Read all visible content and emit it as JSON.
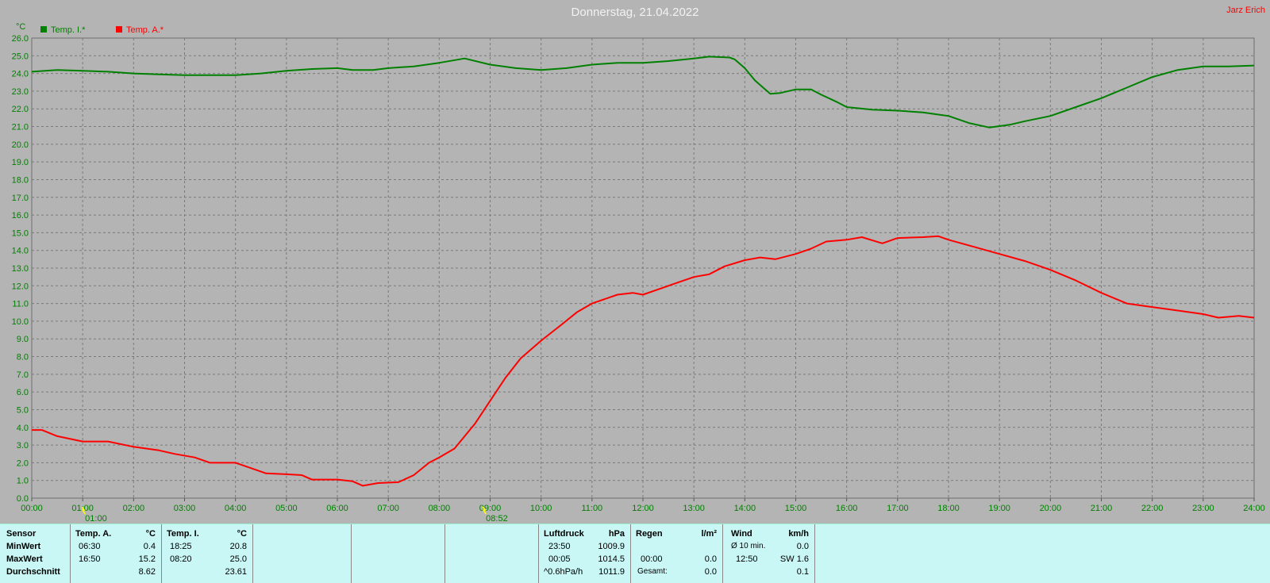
{
  "title": "Donnerstag, 21.04.2022",
  "author": "Jarz Erich",
  "colors": {
    "background": "#b4b4b4",
    "inside": "#008000",
    "outside": "#ff0000",
    "stats_bg": "#c8f7f6",
    "author": "#ff0000"
  },
  "chart_data": {
    "type": "line",
    "ylabel": "°C",
    "ylim": [
      0,
      26
    ],
    "yticks": [
      "0.0",
      "1.0",
      "2.0",
      "3.0",
      "4.0",
      "5.0",
      "6.0",
      "7.0",
      "8.0",
      "9.0",
      "10.0",
      "11.0",
      "12.0",
      "13.0",
      "14.0",
      "15.0",
      "16.0",
      "17.0",
      "18.0",
      "19.0",
      "20.0",
      "21.0",
      "22.0",
      "23.0",
      "24.0",
      "25.0",
      "26.0"
    ],
    "xlim": [
      0,
      24
    ],
    "xticks": [
      "00:00",
      "01:00",
      "02:00",
      "03:00",
      "04:00",
      "05:00",
      "06:00",
      "07:00",
      "08:00",
      "09:00",
      "10:00",
      "11:00",
      "12:00",
      "13:00",
      "14:00",
      "15:00",
      "16:00",
      "17:00",
      "18:00",
      "19:00",
      "20:00",
      "21:00",
      "22:00",
      "23:00",
      "24:00"
    ],
    "grid": true,
    "legend_position": "top-left",
    "markers": [
      {
        "label": "01:00",
        "x": 1.0
      },
      {
        "label": "08:52",
        "x": 8.87
      }
    ],
    "series": [
      {
        "name": "Temp. I.*",
        "color": "#008000",
        "points": [
          [
            0,
            24.1
          ],
          [
            0.5,
            24.2
          ],
          [
            1,
            24.15
          ],
          [
            1.5,
            24.1
          ],
          [
            2,
            24.0
          ],
          [
            2.5,
            23.95
          ],
          [
            3,
            23.9
          ],
          [
            3.5,
            23.9
          ],
          [
            4,
            23.9
          ],
          [
            4.5,
            24.0
          ],
          [
            5,
            24.15
          ],
          [
            5.5,
            24.25
          ],
          [
            6,
            24.3
          ],
          [
            6.3,
            24.2
          ],
          [
            6.7,
            24.2
          ],
          [
            7,
            24.3
          ],
          [
            7.5,
            24.4
          ],
          [
            8,
            24.6
          ],
          [
            8.5,
            24.85
          ],
          [
            9,
            24.5
          ],
          [
            9.5,
            24.3
          ],
          [
            10,
            24.2
          ],
          [
            10.5,
            24.3
          ],
          [
            11,
            24.5
          ],
          [
            11.5,
            24.6
          ],
          [
            12,
            24.6
          ],
          [
            12.5,
            24.7
          ],
          [
            13,
            24.85
          ],
          [
            13.3,
            24.95
          ],
          [
            13.7,
            24.9
          ],
          [
            13.8,
            24.8
          ],
          [
            14,
            24.3
          ],
          [
            14.2,
            23.6
          ],
          [
            14.5,
            22.85
          ],
          [
            14.7,
            22.9
          ],
          [
            15,
            23.1
          ],
          [
            15.3,
            23.1
          ],
          [
            15.5,
            22.8
          ],
          [
            15.8,
            22.4
          ],
          [
            16,
            22.1
          ],
          [
            16.5,
            21.95
          ],
          [
            17,
            21.9
          ],
          [
            17.5,
            21.8
          ],
          [
            18,
            21.6
          ],
          [
            18.4,
            21.2
          ],
          [
            18.8,
            20.95
          ],
          [
            19.2,
            21.1
          ],
          [
            19.5,
            21.3
          ],
          [
            20,
            21.6
          ],
          [
            20.5,
            22.1
          ],
          [
            21,
            22.6
          ],
          [
            21.5,
            23.2
          ],
          [
            22,
            23.8
          ],
          [
            22.5,
            24.2
          ],
          [
            23,
            24.4
          ],
          [
            23.5,
            24.4
          ],
          [
            24,
            24.45
          ]
        ]
      },
      {
        "name": "Temp. A.*",
        "color": "#ff0000",
        "points": [
          [
            0,
            3.85
          ],
          [
            0.2,
            3.85
          ],
          [
            0.5,
            3.5
          ],
          [
            1,
            3.2
          ],
          [
            1.5,
            3.2
          ],
          [
            2,
            2.9
          ],
          [
            2.5,
            2.7
          ],
          [
            2.8,
            2.5
          ],
          [
            3.2,
            2.3
          ],
          [
            3.5,
            2.0
          ],
          [
            4,
            2.0
          ],
          [
            4.3,
            1.7
          ],
          [
            4.6,
            1.4
          ],
          [
            5,
            1.35
          ],
          [
            5.3,
            1.3
          ],
          [
            5.5,
            1.05
          ],
          [
            6,
            1.05
          ],
          [
            6.3,
            0.95
          ],
          [
            6.5,
            0.7
          ],
          [
            6.8,
            0.85
          ],
          [
            7.2,
            0.9
          ],
          [
            7.5,
            1.3
          ],
          [
            7.8,
            2.0
          ],
          [
            8,
            2.3
          ],
          [
            8.3,
            2.8
          ],
          [
            8.7,
            4.2
          ],
          [
            9,
            5.5
          ],
          [
            9.3,
            6.8
          ],
          [
            9.6,
            7.9
          ],
          [
            10,
            8.9
          ],
          [
            10.4,
            9.8
          ],
          [
            10.7,
            10.5
          ],
          [
            11,
            11.0
          ],
          [
            11.5,
            11.5
          ],
          [
            11.8,
            11.6
          ],
          [
            12,
            11.5
          ],
          [
            12.3,
            11.8
          ],
          [
            12.6,
            12.1
          ],
          [
            13,
            12.5
          ],
          [
            13.3,
            12.65
          ],
          [
            13.6,
            13.1
          ],
          [
            14,
            13.45
          ],
          [
            14.3,
            13.6
          ],
          [
            14.6,
            13.5
          ],
          [
            15,
            13.8
          ],
          [
            15.3,
            14.1
          ],
          [
            15.6,
            14.5
          ],
          [
            16,
            14.6
          ],
          [
            16.3,
            14.75
          ],
          [
            16.7,
            14.4
          ],
          [
            17,
            14.7
          ],
          [
            17.5,
            14.75
          ],
          [
            17.8,
            14.8
          ],
          [
            18,
            14.6
          ],
          [
            18.5,
            14.2
          ],
          [
            19,
            13.8
          ],
          [
            19.5,
            13.4
          ],
          [
            20,
            12.9
          ],
          [
            20.5,
            12.3
          ],
          [
            21,
            11.6
          ],
          [
            21.5,
            11.0
          ],
          [
            22,
            10.8
          ],
          [
            22.5,
            10.6
          ],
          [
            23,
            10.4
          ],
          [
            23.3,
            10.2
          ],
          [
            23.7,
            10.3
          ],
          [
            24,
            10.2
          ]
        ]
      }
    ]
  },
  "stats": {
    "headers": {
      "sensor": "Sensor",
      "temp_a": "Temp. A.",
      "unit_c1": "°C",
      "temp_i": "Temp. I.",
      "unit_c2": "°C",
      "luftdruck": "Luftdruck",
      "hpa": "hPa",
      "regen": "Regen",
      "lm2": "l/m²",
      "wind": "Wind",
      "kmh": "km/h"
    },
    "rows": {
      "min": "MinWert",
      "max": "MaxWert",
      "avg": "Durchschnitt"
    },
    "temp_a": {
      "min_time": "06:30",
      "min_val": "0.4",
      "max_time": "16:50",
      "max_val": "15.2",
      "avg": "8.62"
    },
    "temp_i": {
      "min_time": "18:25",
      "min_val": "20.8",
      "max_time": "08:20",
      "max_val": "25.0",
      "avg": "23.61"
    },
    "luftdruck": {
      "min_time": "23:50",
      "min_val": "1009.9",
      "max_time": "00:05",
      "max_val": "1014.5",
      "trend": "^0.6hPa/h",
      "current": "1011.9"
    },
    "regen": {
      "time": "00:00",
      "val": "0.0",
      "total_label": "Gesamt:",
      "total": "0.0"
    },
    "wind": {
      "avg_label": "Ø 10 min.",
      "avg_val": "0.0",
      "max_time": "12:50",
      "max_val": "SW 1.6",
      "val3": "0.1"
    }
  }
}
